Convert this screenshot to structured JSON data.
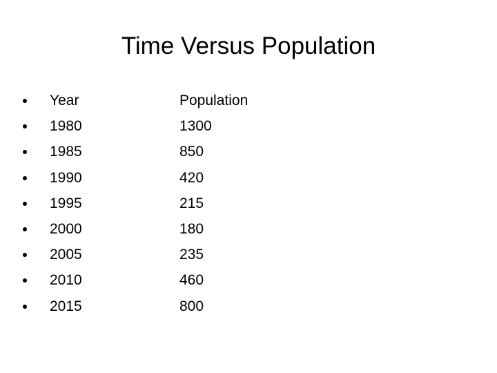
{
  "title": "Time Versus Population",
  "table": {
    "header": [
      "Year",
      "Population"
    ],
    "rows": [
      [
        1980,
        1300
      ],
      [
        1985,
        850
      ],
      [
        1990,
        420
      ],
      [
        1995,
        215
      ],
      [
        2000,
        180
      ],
      [
        2005,
        235
      ],
      [
        2010,
        460
      ],
      [
        2015,
        800
      ]
    ]
  }
}
